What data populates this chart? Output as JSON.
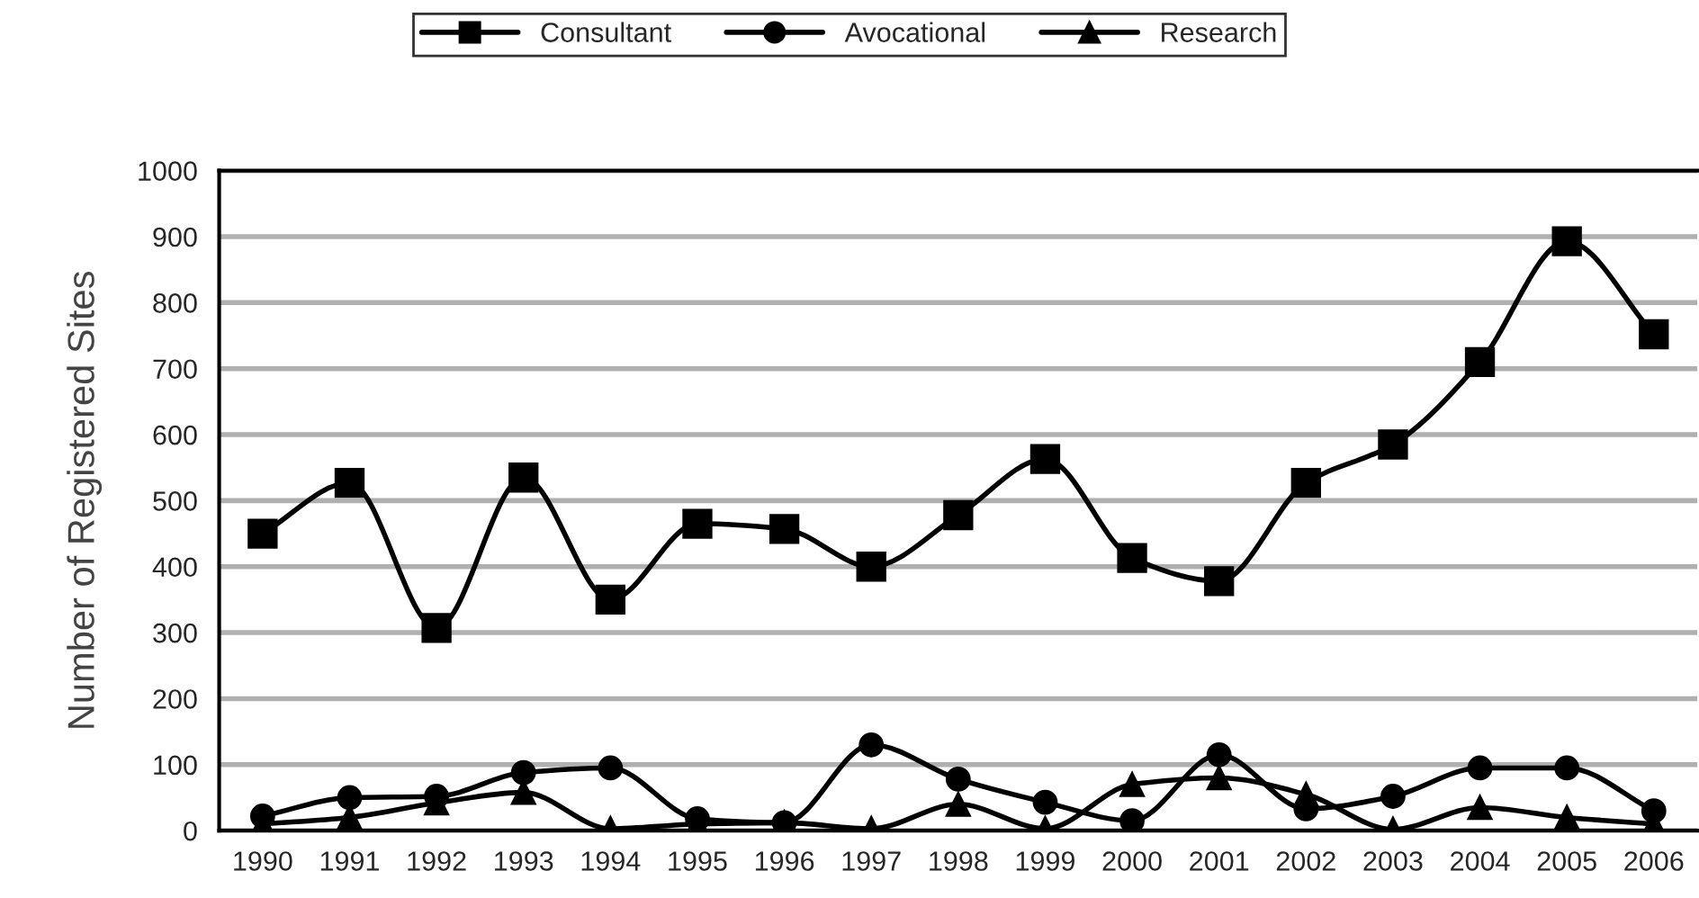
{
  "chart_data": {
    "type": "line",
    "ylabel": "Number of Registered Sites",
    "categories": [
      "1990",
      "1991",
      "1992",
      "1993",
      "1994",
      "1995",
      "1996",
      "1997",
      "1998",
      "1999",
      "2000",
      "2001",
      "2002",
      "2003",
      "2004",
      "2005",
      "2006"
    ],
    "series": [
      {
        "name": "Consultant",
        "color": "#000000",
        "marker": "square",
        "values": [
          450,
          527,
          307,
          535,
          350,
          465,
          457,
          400,
          478,
          563,
          413,
          378,
          527,
          585,
          710,
          893,
          752
        ]
      },
      {
        "name": "Avocational",
        "color": "#000000",
        "marker": "circle",
        "values": [
          22,
          50,
          52,
          88,
          95,
          18,
          12,
          130,
          78,
          43,
          15,
          115,
          33,
          52,
          95,
          95,
          30
        ]
      },
      {
        "name": "Research",
        "color": "#000000",
        "marker": "triangle",
        "values": [
          10,
          20,
          42,
          58,
          3,
          10,
          12,
          3,
          40,
          3,
          70,
          80,
          55,
          2,
          35,
          20,
          10
        ]
      }
    ],
    "ylim": [
      0,
      1000
    ],
    "yticks": [
      0,
      100,
      200,
      300,
      400,
      500,
      600,
      700,
      800,
      900,
      1000
    ],
    "grid": "y",
    "legend": "top",
    "line_style": "solid"
  }
}
